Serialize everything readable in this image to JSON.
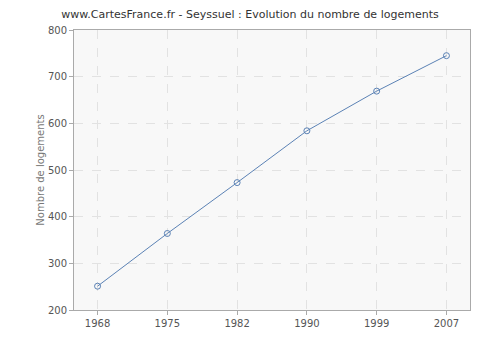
{
  "chart_data": {
    "type": "line",
    "title": "www.CartesFrance.fr - Seyssuel : Evolution du nombre de logements",
    "y_label": "Nombre de logements",
    "categories": [
      "1968",
      "1975",
      "1982",
      "1990",
      "1999",
      "2007"
    ],
    "values": [
      251,
      364,
      473,
      584,
      669,
      745
    ],
    "color": "#5b82b5",
    "marker": "circle-open",
    "line_style": "solid",
    "ylim": [
      200,
      800
    ],
    "yticks": [
      200,
      300,
      400,
      500,
      600,
      700,
      800
    ],
    "grid": true
  }
}
